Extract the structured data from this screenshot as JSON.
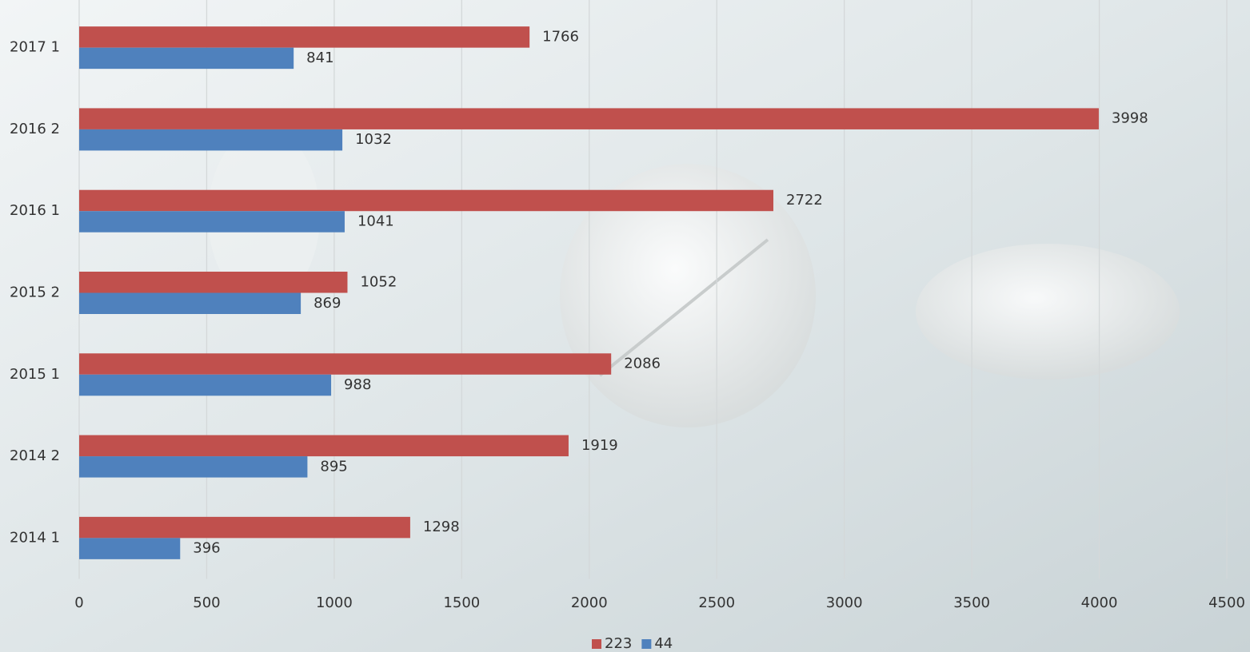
{
  "chart_data": {
    "type": "hbar",
    "categories": [
      "2014 1",
      "2014 2",
      "2015 1",
      "2015 2",
      "2016 1",
      "2016 2",
      "2017 1"
    ],
    "series": [
      {
        "name": "223",
        "color": "#c0504d",
        "values": [
          1298,
          1919,
          2086,
          1052,
          2722,
          3998,
          1766
        ]
      },
      {
        "name": "44",
        "color": "#4f81bd",
        "values": [
          396,
          895,
          988,
          869,
          1041,
          1032,
          841
        ]
      }
    ],
    "xlim": [
      0,
      4500
    ],
    "xticks": [
      0,
      500,
      1000,
      1500,
      2000,
      2500,
      3000,
      3500,
      4000,
      4500
    ],
    "grid": true,
    "legend": "bottom"
  }
}
